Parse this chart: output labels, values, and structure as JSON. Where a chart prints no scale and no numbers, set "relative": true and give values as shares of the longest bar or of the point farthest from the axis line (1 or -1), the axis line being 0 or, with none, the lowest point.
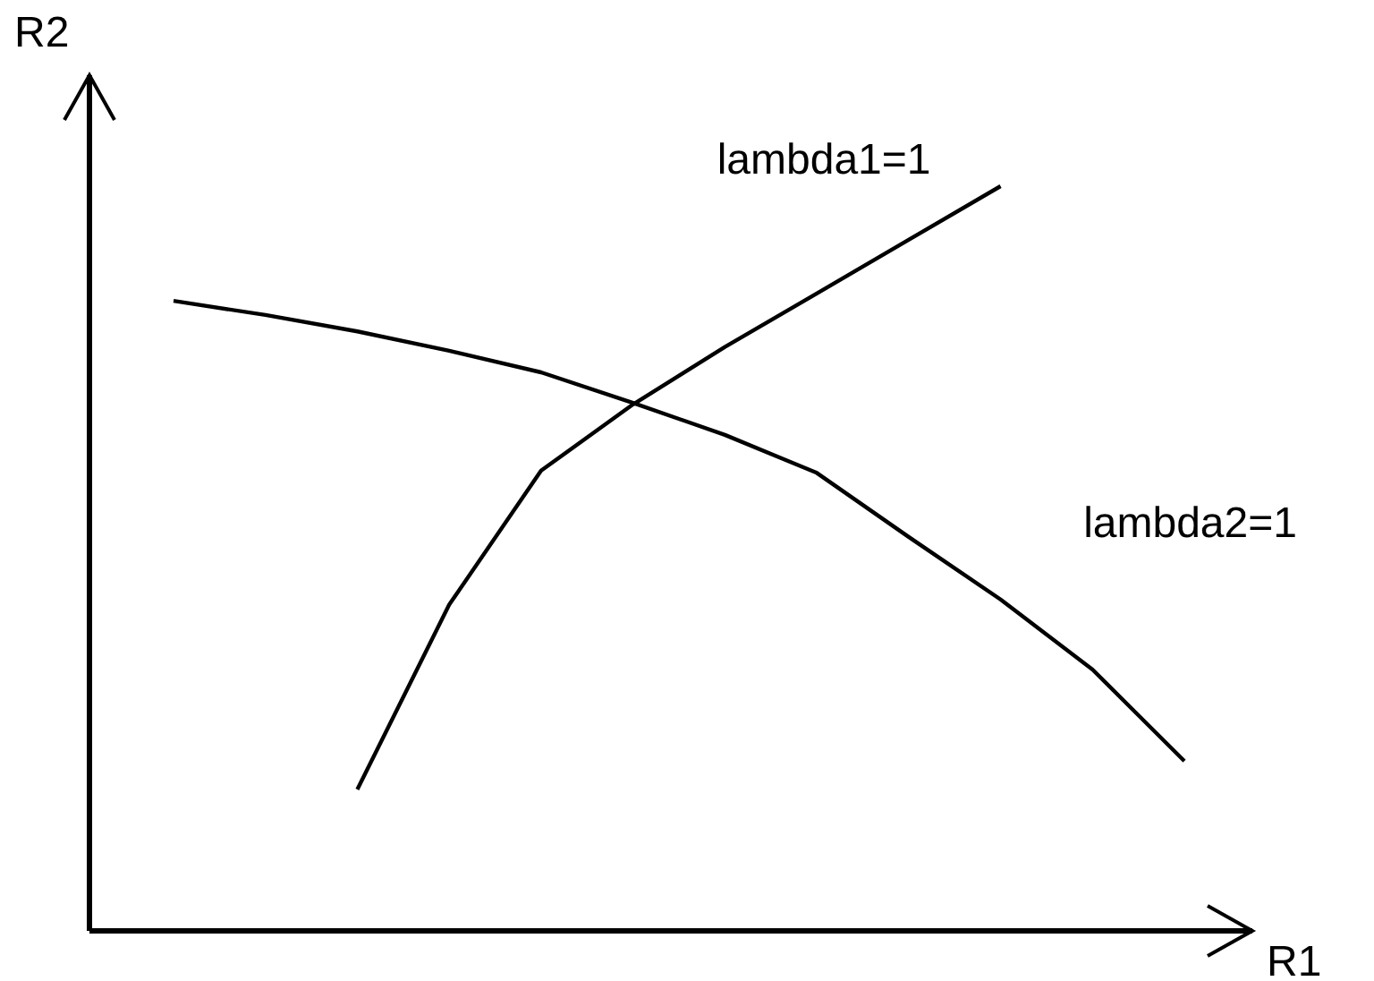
{
  "chart_data": {
    "type": "line",
    "relative": true,
    "xlabel": "R1",
    "ylabel": "R2",
    "categories": [
      null,
      null,
      null,
      null,
      null,
      null,
      null,
      null,
      null,
      null,
      null,
      null
    ],
    "tick_labels": false,
    "legend": false,
    "marker": "none",
    "line_style": "solid",
    "series": [
      {
        "name": "lambda1=1",
        "color": "#000000",
        "values": [
          null,
          null,
          0.19,
          0.438,
          0.618,
          0.707,
          0.784,
          0.856,
          0.928,
          1,
          null,
          null
        ]
      },
      {
        "name": "lambda2=1",
        "color": "#000000",
        "values": [
          0.846,
          0.827,
          0.805,
          0.779,
          0.75,
          0.709,
          0.666,
          0.615,
          0.529,
          0.445,
          0.351,
          0.228
        ]
      }
    ]
  }
}
